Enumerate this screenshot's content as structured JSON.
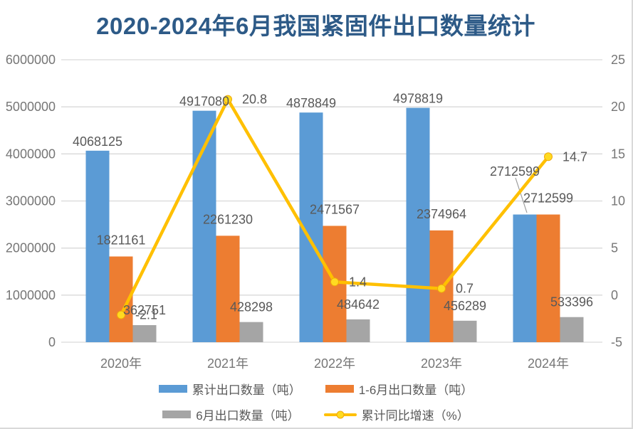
{
  "chart_data": {
    "type": "combo-bar-line",
    "title": "2020-2024年6月我国紧固件出口数量统计",
    "categories": [
      "2020年",
      "2021年",
      "2022年",
      "2023年",
      "2024年"
    ],
    "bar_series": [
      {
        "name": "累计出口数量（吨）",
        "color": "#5B9BD5",
        "values": [
          4068125,
          4917080,
          4878849,
          4978819,
          2712599
        ],
        "labels": [
          "4068125",
          "4917080",
          "4878849",
          "4978819",
          "2712599"
        ]
      },
      {
        "name": "1-6月出口数量（吨）",
        "color": "#ED7D31",
        "values": [
          1821161,
          2261230,
          2471567,
          2374964,
          2712599
        ],
        "labels": [
          "1821161",
          "2261230",
          "2471567",
          "2374964",
          "2712599"
        ]
      },
      {
        "name": "6月出口数量（吨）",
        "color": "#A5A5A5",
        "values": [
          362751,
          428298,
          484642,
          456289,
          533396
        ],
        "labels": [
          "362751",
          "428298",
          "484642",
          "456289",
          "533396"
        ]
      }
    ],
    "line_series": {
      "name": "累计同比增速（%）",
      "color": "#FFC000",
      "marker_fill": "#FFDB21",
      "marker_stroke": "#F0A80A",
      "values": [
        -2.1,
        20.8,
        1.4,
        0.7,
        14.7
      ],
      "labels": [
        "-2.1",
        "20.8",
        "1.4",
        "0.7",
        "14.7"
      ]
    },
    "left_axis": {
      "min": 0,
      "max": 6000000,
      "ticks": [
        "0",
        "1000000",
        "2000000",
        "3000000",
        "4000000",
        "5000000",
        "6000000"
      ]
    },
    "right_axis": {
      "min": -5,
      "max": 25,
      "ticks": [
        "-5",
        "0",
        "5",
        "10",
        "15",
        "20",
        "25"
      ]
    },
    "grid": true,
    "legend_position": "bottom"
  },
  "colors": {
    "title": "#2D5A87",
    "axis_text": "#767676",
    "data_label": "#595959",
    "gridline": "#D9D9D9",
    "leader_line": "#9E9E9E",
    "background": "#FFFFFF"
  }
}
